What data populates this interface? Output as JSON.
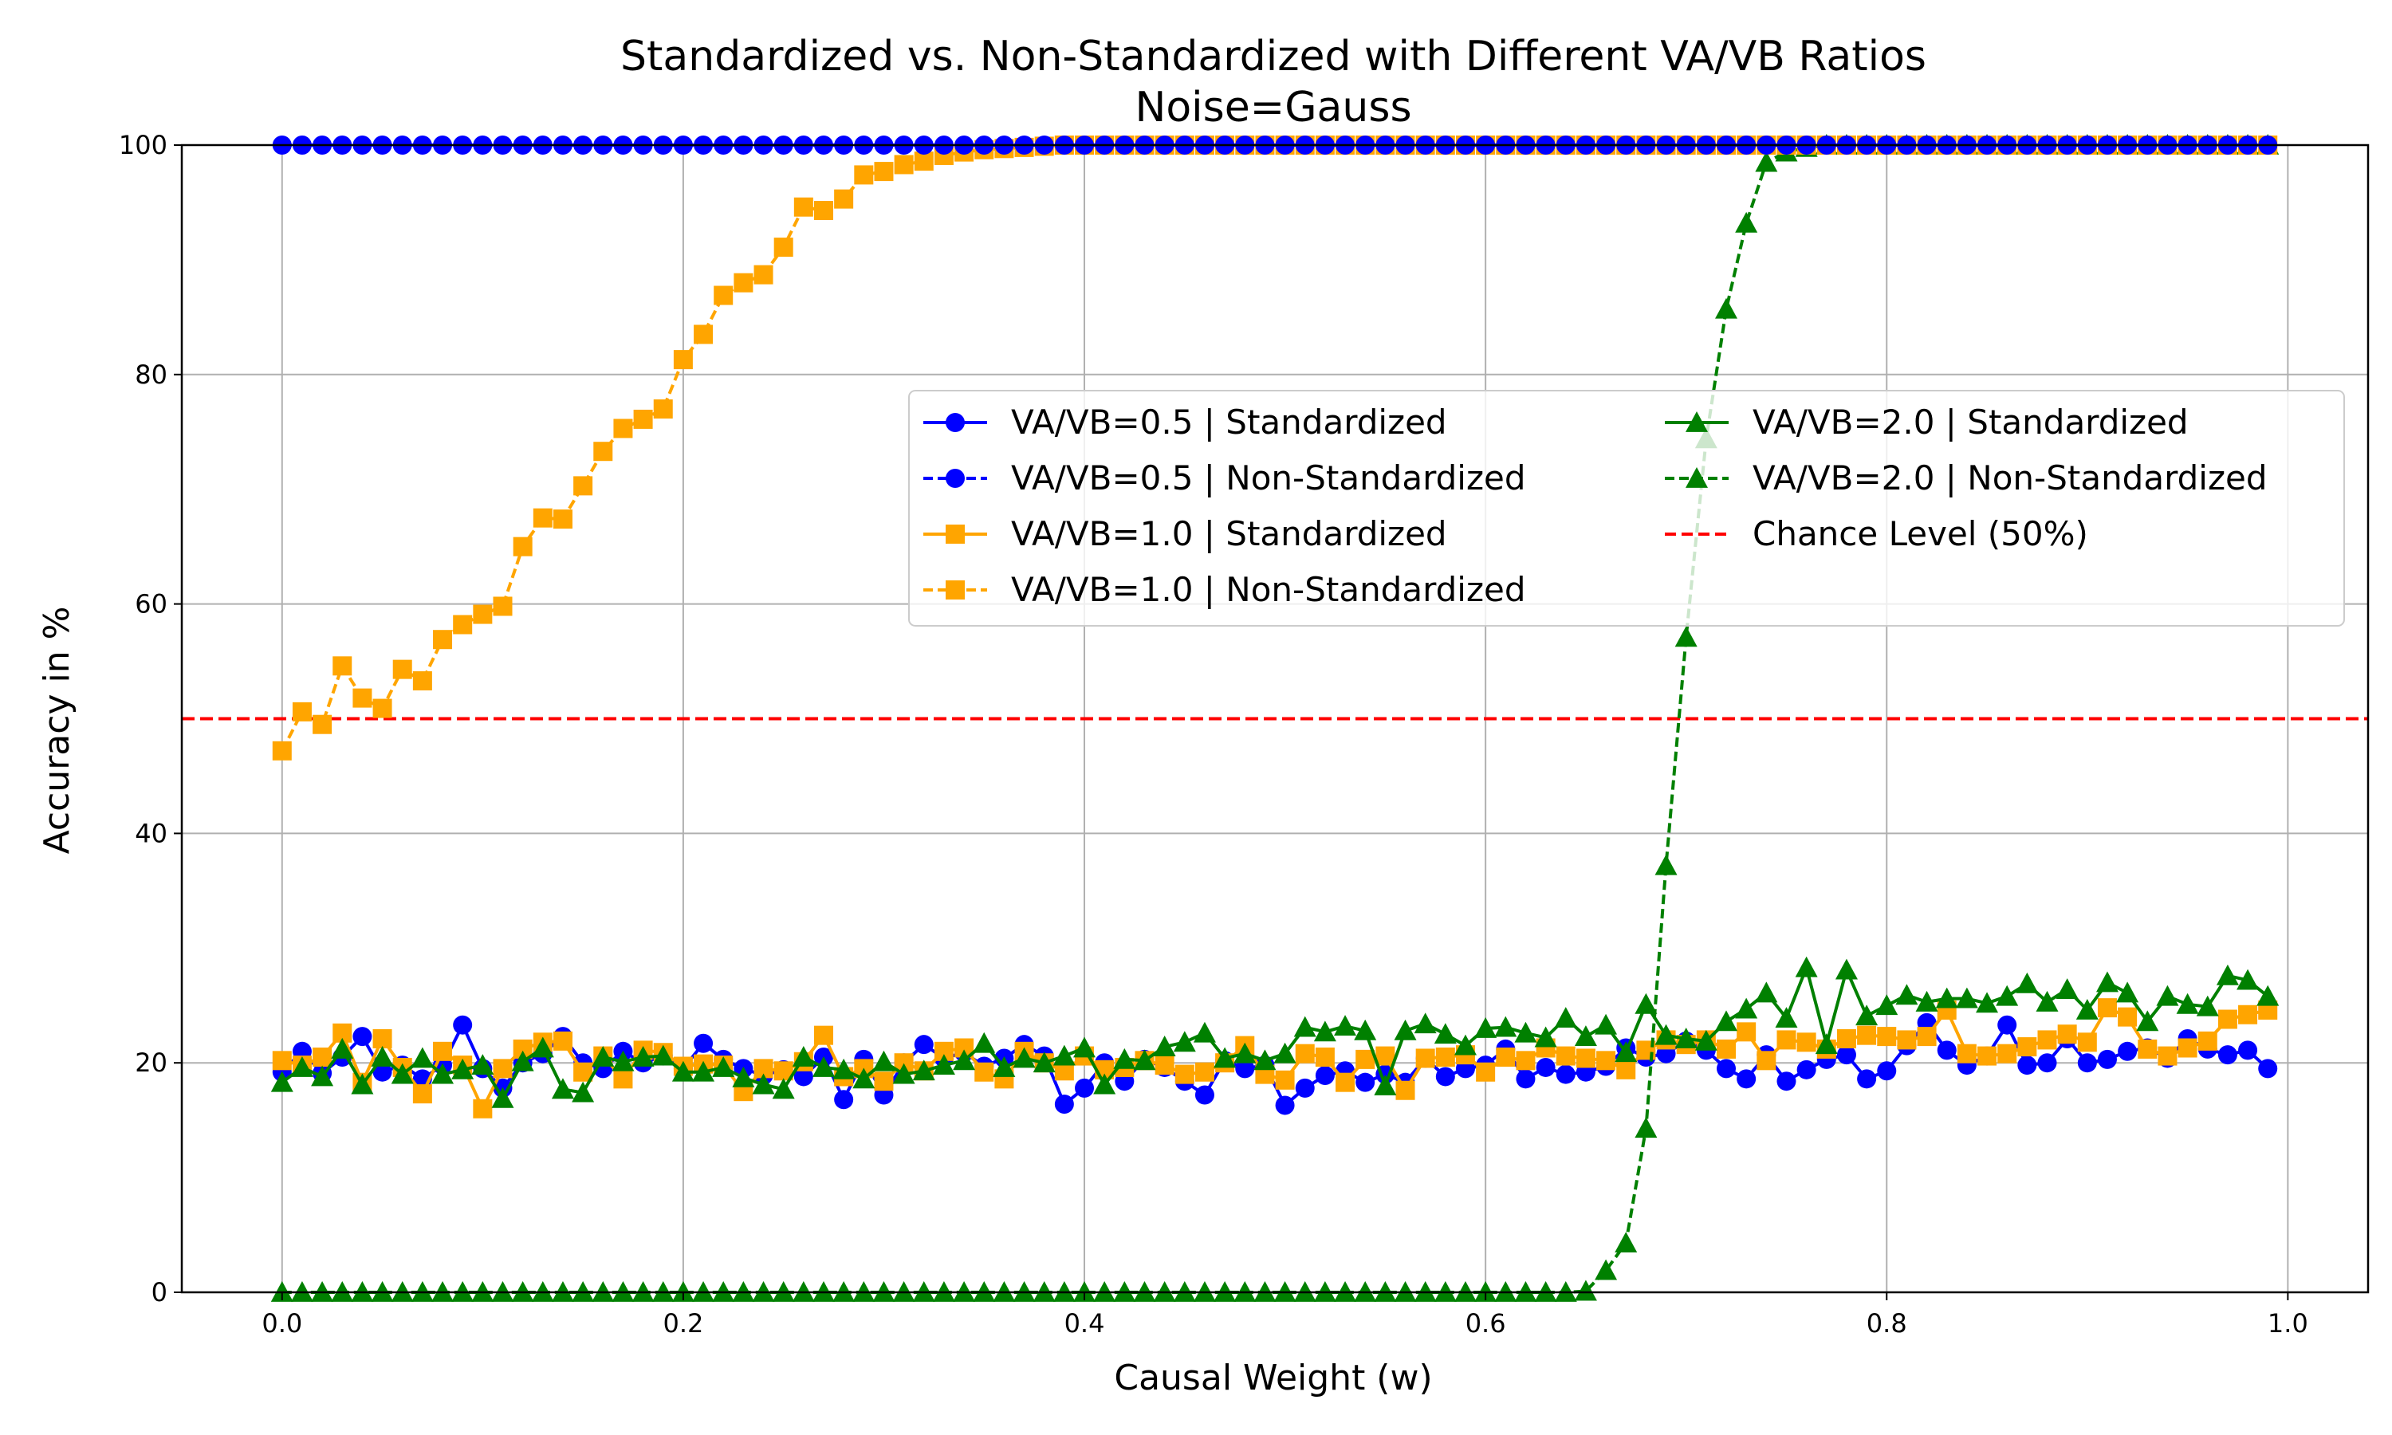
{
  "chart_data": {
    "type": "line",
    "title": "Standardized vs. Non-Standardized with Different VA/VB Ratios",
    "subtitle": "Noise=Gauss",
    "xlabel": "Causal Weight (w)",
    "ylabel": "Accuracy in %",
    "xlim": [
      -0.05,
      1.04
    ],
    "ylim": [
      0,
      100
    ],
    "xticks": [
      "0.0",
      "0.2",
      "0.4",
      "0.6",
      "0.8",
      "1.0"
    ],
    "yticks": [
      "0",
      "20",
      "40",
      "60",
      "80",
      "100"
    ],
    "grid": true,
    "legend_position": "center-right",
    "reference_line": {
      "name": "Chance Level (50%)",
      "y": 50,
      "color": "#ff0000",
      "style": "dashed"
    },
    "x": [
      0.0,
      0.01,
      0.02,
      0.03,
      0.04,
      0.05,
      0.06,
      0.07,
      0.08,
      0.09,
      0.1,
      0.11,
      0.12,
      0.13,
      0.14,
      0.15,
      0.16,
      0.17,
      0.18,
      0.19,
      0.2,
      0.21,
      0.22,
      0.23,
      0.24,
      0.25,
      0.26,
      0.27,
      0.28,
      0.29,
      0.3,
      0.31,
      0.32,
      0.33,
      0.34,
      0.35,
      0.36,
      0.37,
      0.38,
      0.39,
      0.4,
      0.41,
      0.42,
      0.43,
      0.44,
      0.45,
      0.46,
      0.47,
      0.48,
      0.49,
      0.5,
      0.51,
      0.52,
      0.53,
      0.54,
      0.55,
      0.56,
      0.57,
      0.58,
      0.59,
      0.6,
      0.61,
      0.62,
      0.63,
      0.64,
      0.65,
      0.66,
      0.67,
      0.68,
      0.69,
      0.7,
      0.71,
      0.72,
      0.73,
      0.74,
      0.75,
      0.76,
      0.77,
      0.78,
      0.79,
      0.8,
      0.81,
      0.82,
      0.83,
      0.84,
      0.85,
      0.86,
      0.87,
      0.88,
      0.89,
      0.9,
      0.91,
      0.92,
      0.93,
      0.94,
      0.95,
      0.96,
      0.97,
      0.98,
      0.99
    ],
    "series": [
      {
        "name": "VA/VB=0.5 | Standardized",
        "color": "#0000ff",
        "marker": "circle",
        "linestyle": "solid",
        "values": [
          19.2,
          21.0,
          19.1,
          20.5,
          22.3,
          19.2,
          19.8,
          18.6,
          19.8,
          23.3,
          19.5,
          17.8,
          20.0,
          20.8,
          22.3,
          20.0,
          19.5,
          21.0,
          20.0,
          20.6,
          19.5,
          21.7,
          20.3,
          19.5,
          18.9,
          19.4,
          18.8,
          20.5,
          16.8,
          20.3,
          17.2,
          20.0,
          21.6,
          20.4,
          20.9,
          19.7,
          20.4,
          21.6,
          20.6,
          16.4,
          17.8,
          20.0,
          18.4,
          20.3,
          19.6,
          18.4,
          17.2,
          20.2,
          19.5,
          19.8,
          16.3,
          17.8,
          18.9,
          19.3,
          18.3,
          19.0,
          18.3,
          20.4,
          18.8,
          19.5,
          19.8,
          21.2,
          18.6,
          19.6,
          19.0,
          19.2,
          19.7,
          21.3,
          20.5,
          20.8,
          21.9,
          21.1,
          19.5,
          18.6,
          20.7,
          18.4,
          19.4,
          20.3,
          20.7,
          18.6,
          19.3,
          21.5,
          23.5,
          21.1,
          19.8,
          20.6,
          23.3,
          19.8,
          20.0,
          22.1,
          20.0,
          20.3,
          21.0,
          21.3,
          20.4,
          22.1,
          21.2,
          20.7,
          21.1,
          19.5
        ]
      },
      {
        "name": "VA/VB=0.5 | Non-Standardized",
        "color": "#0000ff",
        "marker": "circle",
        "linestyle": "dashed",
        "values": [
          100,
          100,
          100,
          100,
          100,
          100,
          100,
          100,
          100,
          100,
          100,
          100,
          100,
          100,
          100,
          100,
          100,
          100,
          100,
          100,
          100,
          100,
          100,
          100,
          100,
          100,
          100,
          100,
          100,
          100,
          100,
          100,
          100,
          100,
          100,
          100,
          100,
          100,
          100,
          100,
          100,
          100,
          100,
          100,
          100,
          100,
          100,
          100,
          100,
          100,
          100,
          100,
          100,
          100,
          100,
          100,
          100,
          100,
          100,
          100,
          100,
          100,
          100,
          100,
          100,
          100,
          100,
          100,
          100,
          100,
          100,
          100,
          100,
          100,
          100,
          100,
          100,
          100,
          100,
          100,
          100,
          100,
          100,
          100,
          100,
          100,
          100,
          100,
          100,
          100,
          100,
          100,
          100,
          100,
          100,
          100,
          100,
          100,
          100,
          100
        ]
      },
      {
        "name": "VA/VB=1.0 | Standardized",
        "color": "#ffa500",
        "marker": "square",
        "linestyle": "solid",
        "values": [
          20.2,
          19.8,
          20.5,
          22.6,
          18.3,
          22.1,
          19.6,
          17.3,
          21.0,
          19.8,
          16.0,
          19.5,
          21.2,
          21.8,
          21.9,
          19.2,
          20.6,
          18.6,
          21.1,
          20.9,
          19.7,
          19.9,
          19.8,
          17.5,
          19.5,
          19.3,
          20.1,
          22.4,
          18.8,
          19.5,
          18.4,
          20.0,
          19.3,
          21.0,
          21.3,
          19.2,
          18.6,
          21.0,
          20.0,
          19.3,
          20.6,
          19.4,
          19.6,
          20.2,
          19.8,
          19.0,
          19.2,
          20.0,
          21.5,
          19.0,
          18.5,
          20.8,
          20.5,
          18.3,
          20.3,
          20.6,
          17.6,
          20.4,
          20.5,
          20.7,
          19.2,
          20.5,
          20.2,
          21.3,
          20.6,
          20.4,
          20.2,
          19.4,
          21.1,
          22.0,
          21.6,
          22.0,
          21.2,
          22.7,
          20.2,
          22.0,
          21.8,
          21.2,
          22.1,
          22.4,
          22.3,
          22.0,
          22.3,
          24.6,
          20.8,
          20.6,
          20.8,
          21.4,
          22.0,
          22.5,
          21.8,
          24.8,
          24.0,
          21.2,
          20.6,
          21.3,
          21.9,
          23.8,
          24.2,
          24.6
        ]
      },
      {
        "name": "VA/VB=1.0 | Non-Standardized",
        "color": "#ffa500",
        "marker": "square",
        "linestyle": "dashed",
        "values": [
          47.2,
          50.6,
          49.5,
          54.6,
          51.8,
          50.9,
          54.3,
          53.3,
          56.9,
          58.2,
          59.1,
          59.8,
          65.0,
          67.5,
          67.4,
          70.3,
          73.3,
          75.3,
          76.1,
          77.0,
          81.3,
          83.5,
          86.9,
          88.0,
          88.7,
          91.1,
          94.6,
          94.3,
          95.3,
          97.4,
          97.7,
          98.3,
          98.6,
          99.1,
          99.4,
          99.6,
          99.7,
          99.8,
          99.9,
          100,
          100,
          100,
          100,
          100,
          100,
          100,
          100,
          100,
          100,
          100,
          100,
          100,
          100,
          100,
          100,
          100,
          100,
          100,
          100,
          100,
          100,
          100,
          100,
          100,
          100,
          100,
          100,
          100,
          100,
          100,
          100,
          100,
          100,
          100,
          100,
          100,
          100,
          100,
          100,
          100,
          100,
          100,
          100,
          100,
          100,
          100,
          100,
          100,
          100,
          100,
          100,
          100,
          100,
          100,
          100,
          100,
          100,
          100,
          100,
          100
        ]
      },
      {
        "name": "VA/VB=2.0 | Standardized",
        "color": "#008000",
        "marker": "triangle",
        "linestyle": "solid",
        "values": [
          18.3,
          19.6,
          18.8,
          21.2,
          18.1,
          20.5,
          19.0,
          20.4,
          19.0,
          19.4,
          19.8,
          16.9,
          20.1,
          21.3,
          17.7,
          17.4,
          20.5,
          20.1,
          20.5,
          20.6,
          19.2,
          19.2,
          19.6,
          18.7,
          18.1,
          17.7,
          20.5,
          19.6,
          19.4,
          18.6,
          20.1,
          19.0,
          19.3,
          19.8,
          20.2,
          21.7,
          19.6,
          20.4,
          20.0,
          20.6,
          21.3,
          18.1,
          20.3,
          20.2,
          21.4,
          21.8,
          22.6,
          20.4,
          20.8,
          20.2,
          20.8,
          23.1,
          22.7,
          23.2,
          22.8,
          18.0,
          22.8,
          23.4,
          22.5,
          21.5,
          23.0,
          23.1,
          22.6,
          22.2,
          23.9,
          22.3,
          23.3,
          20.9,
          25.1,
          22.4,
          22.1,
          21.9,
          23.6,
          24.7,
          26.1,
          23.9,
          28.3,
          21.6,
          28.1,
          24.1,
          25.0,
          25.9,
          25.3,
          25.6,
          25.6,
          25.2,
          25.8,
          26.9,
          25.3,
          26.4,
          24.6,
          27.0,
          26.1,
          23.6,
          25.8,
          25.1,
          24.9,
          27.6,
          27.2,
          25.8
        ]
      },
      {
        "name": "VA/VB=2.0 | Non-Standardized",
        "color": "#008000",
        "marker": "triangle",
        "linestyle": "dashed",
        "values": [
          0,
          0,
          0,
          0,
          0,
          0,
          0,
          0,
          0,
          0,
          0,
          0,
          0,
          0,
          0,
          0,
          0,
          0,
          0,
          0,
          0,
          0,
          0,
          0,
          0,
          0,
          0,
          0,
          0,
          0,
          0,
          0,
          0,
          0,
          0,
          0,
          0,
          0,
          0,
          0,
          0,
          0,
          0,
          0,
          0,
          0,
          0,
          0,
          0,
          0,
          0,
          0,
          0,
          0,
          0,
          0,
          0,
          0,
          0,
          0,
          0,
          0,
          0,
          0,
          0,
          0.1,
          1.9,
          4.3,
          14.3,
          37.2,
          57.1,
          74.4,
          85.7,
          93.2,
          98.5,
          99.4,
          99.8,
          100,
          100,
          100,
          100,
          100,
          100,
          100,
          100,
          100,
          100,
          100,
          100,
          100,
          100,
          100,
          100,
          100,
          100,
          100,
          100,
          100,
          100,
          100
        ]
      }
    ]
  }
}
